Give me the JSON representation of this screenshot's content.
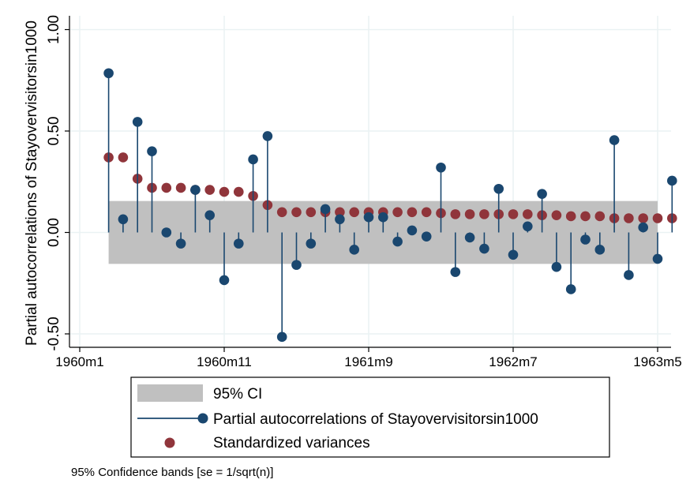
{
  "chart_data": {
    "type": "scatter",
    "ylabel": "Partial autocorrelations of Stayovervisitorsin1000",
    "x_ticks": [
      "1960m1",
      "1960m11",
      "1961m9",
      "1962m7",
      "1963m5"
    ],
    "y_ticks": [
      "-0.50",
      "0.00",
      "0.50",
      "1.00"
    ],
    "ylim": [
      -0.55,
      1.02
    ],
    "xlim": [
      "1960m1",
      "1963m5"
    ],
    "grid": true,
    "legend_position": "bottom",
    "confidence_band": {
      "from": "1960m3",
      "to": "1963m5",
      "lower": -0.155,
      "upper": 0.155
    },
    "legend": {
      "ci_label": "95% CI",
      "pacf_label": "Partial autocorrelations of Stayovervisitorsin1000",
      "var_label": "Standardized variances"
    },
    "note": "95% Confidence bands [se = 1/sqrt(n)]",
    "x": [
      "1960m3",
      "1960m4",
      "1960m5",
      "1960m6",
      "1960m7",
      "1960m8",
      "1960m9",
      "1960m10",
      "1960m11",
      "1960m12",
      "1961m1",
      "1961m2",
      "1961m3",
      "1961m4",
      "1961m5",
      "1961m6",
      "1961m7",
      "1961m8",
      "1961m9",
      "1961m10",
      "1961m11",
      "1961m12",
      "1962m1",
      "1962m2",
      "1962m3",
      "1962m4",
      "1962m5",
      "1962m6",
      "1962m7",
      "1962m8",
      "1962m9",
      "1962m10",
      "1962m11",
      "1962m12",
      "1963m1",
      "1963m2",
      "1963m3",
      "1963m4",
      "1963m5",
      "1963m6"
    ],
    "series": [
      {
        "name": "Partial autocorrelations of Stayovervisitorsin1000",
        "values": [
          0.785,
          0.065,
          0.545,
          0.4,
          0.0,
          -0.055,
          0.21,
          0.085,
          -0.235,
          -0.055,
          0.36,
          0.475,
          -0.515,
          -0.16,
          -0.055,
          0.115,
          0.065,
          -0.085,
          0.075,
          0.075,
          -0.045,
          0.01,
          -0.02,
          0.32,
          -0.195,
          -0.025,
          -0.08,
          0.215,
          -0.11,
          0.03,
          0.19,
          -0.17,
          -0.28,
          -0.035,
          -0.085,
          0.455,
          -0.21,
          0.025,
          -0.13,
          0.255
        ],
        "color": "#1a476f"
      },
      {
        "name": "Standardized variances",
        "values": [
          0.37,
          0.37,
          0.265,
          0.22,
          0.22,
          0.22,
          0.21,
          0.21,
          0.2,
          0.2,
          0.18,
          0.135,
          0.1,
          0.1,
          0.1,
          0.1,
          0.1,
          0.1,
          0.1,
          0.1,
          0.1,
          0.1,
          0.1,
          0.095,
          0.09,
          0.09,
          0.09,
          0.09,
          0.09,
          0.09,
          0.085,
          0.085,
          0.08,
          0.08,
          0.08,
          0.07,
          0.07,
          0.07,
          0.07,
          0.07
        ],
        "color": "#90353b"
      }
    ],
    "band_color": "#c0c0c0"
  }
}
